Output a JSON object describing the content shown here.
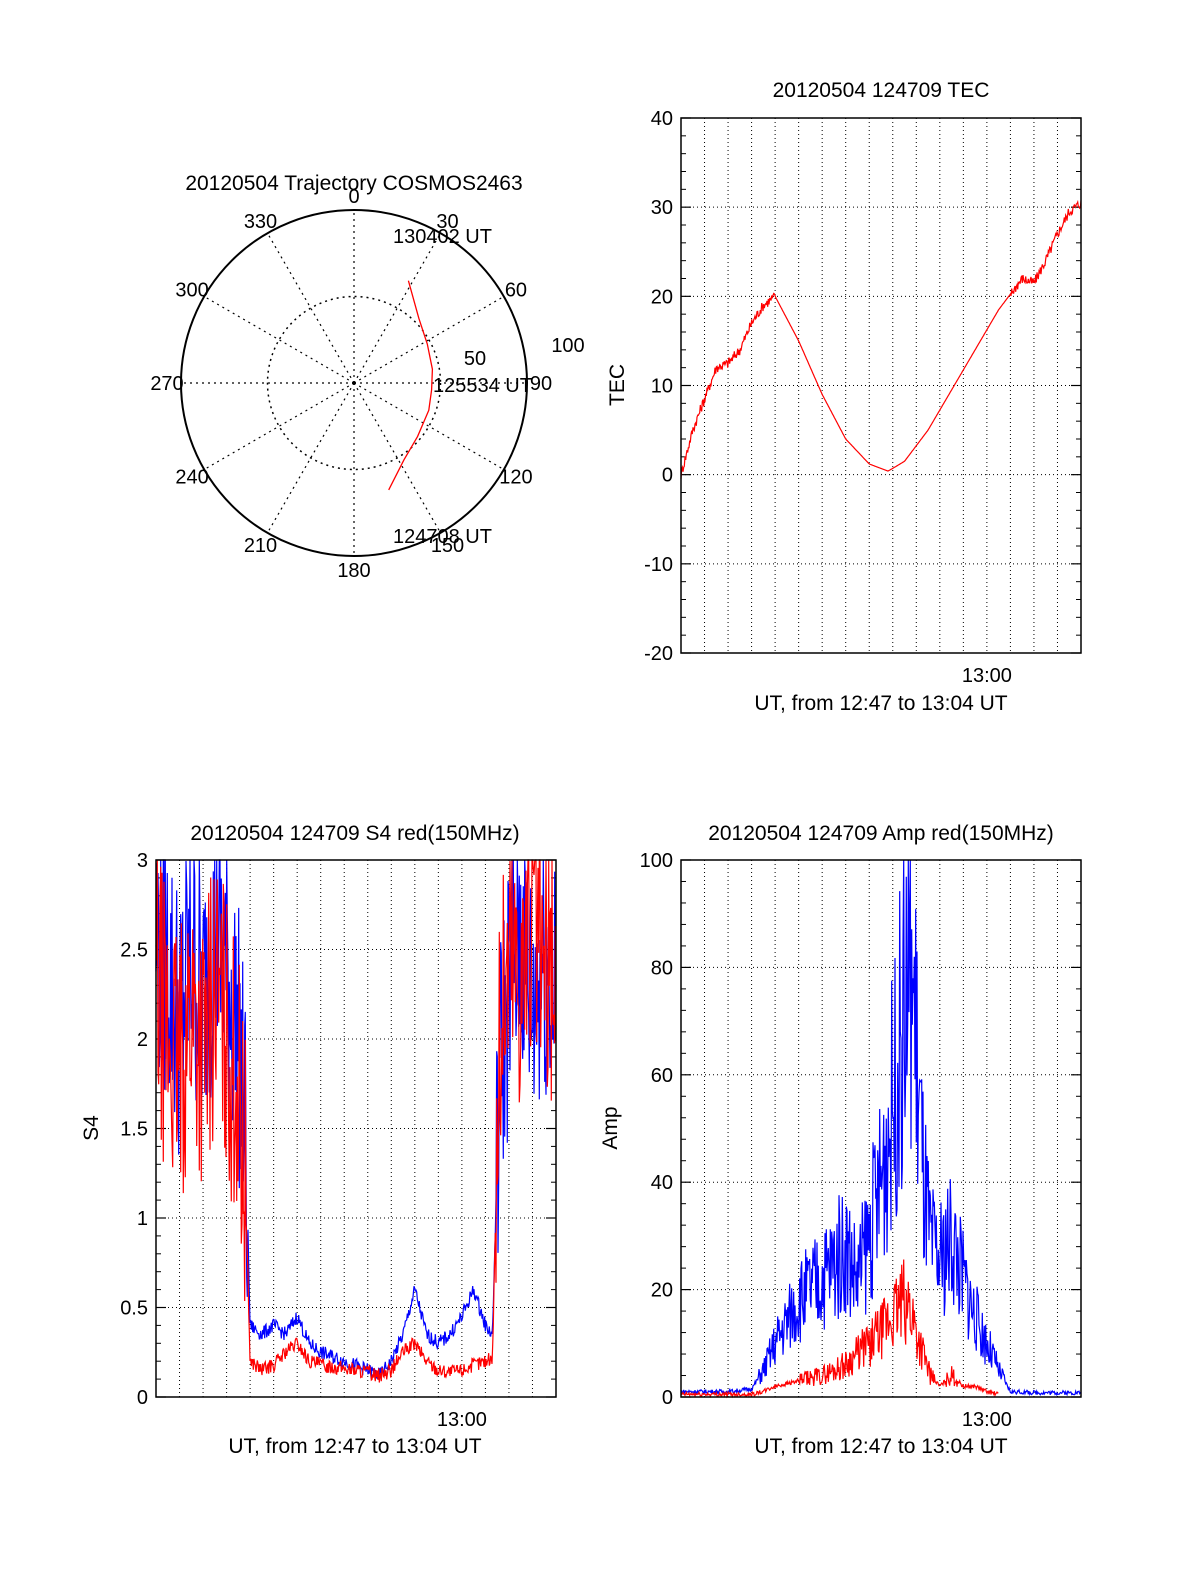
{
  "chart_data": [
    {
      "type": "polar",
      "title": "20120504 Trajectory COSMOS2463",
      "azimuth_labels": [
        "0",
        "30",
        "60",
        "90",
        "120",
        "150",
        "180",
        "210",
        "240",
        "270",
        "300",
        "330"
      ],
      "radial_labels": [
        "50",
        "100"
      ],
      "rlim": [
        0,
        100
      ],
      "grid": true,
      "annotations": [
        "130402 UT",
        "125534 UT",
        "124708 UT"
      ],
      "series": [
        {
          "color": "#ff0000",
          "points": [
            {
              "az": 162,
              "r": 65
            },
            {
              "az": 147,
              "r": 53
            },
            {
              "az": 130,
              "r": 48
            },
            {
              "az": 110,
              "r": 46
            },
            {
              "az": 95,
              "r": 45
            },
            {
              "az": 80,
              "r": 46
            },
            {
              "az": 62,
              "r": 48
            },
            {
              "az": 45,
              "r": 53
            },
            {
              "az": 28,
              "r": 67
            }
          ]
        }
      ]
    },
    {
      "type": "line",
      "title": "20120504 124709 TEC",
      "xlabel": "UT, from 12:47 to 13:04 UT",
      "ylabel": "TEC",
      "x_tick_labels": [
        "13:00"
      ],
      "x_tick_positions_min": [
        13
      ],
      "xlim": [
        0,
        17
      ],
      "ylim": [
        -20,
        40
      ],
      "y_ticks": [
        -20,
        -10,
        0,
        10,
        20,
        30,
        40
      ],
      "grid": true,
      "series": [
        {
          "color": "#ff0000",
          "x": [
            0,
            0.5,
            1.0,
            1.5,
            2.0,
            2.5,
            3.0,
            3.5,
            4.0,
            5.0,
            6.0,
            7.0,
            8.0,
            8.8,
            9.5,
            10.5,
            11.5,
            12.5,
            13.5,
            14.5,
            15.0,
            15.5,
            16.0,
            16.5,
            17.0
          ],
          "y": [
            0,
            5,
            8.5,
            12,
            12.5,
            14,
            17,
            19,
            20,
            15,
            9,
            4,
            1.2,
            0.4,
            1.5,
            5,
            9.5,
            14,
            18.5,
            22,
            21.5,
            24,
            27,
            29.5,
            30.5
          ]
        }
      ]
    },
    {
      "type": "line",
      "title": "20120504 124709 S4 red(150MHz)",
      "xlabel": "UT, from 12:47 to 13:04 UT",
      "ylabel": "S4",
      "x_tick_labels": [
        "13:00"
      ],
      "x_tick_positions_min": [
        13
      ],
      "xlim": [
        0,
        17
      ],
      "ylim": [
        0,
        3
      ],
      "y_ticks": [
        0,
        0.5,
        1,
        1.5,
        2,
        2.5,
        3
      ],
      "y_tick_labels": [
        "0",
        "0.5",
        "1",
        "1.5",
        "2",
        "2.5",
        "3"
      ],
      "grid": true,
      "series": [
        {
          "color": "#0000ff",
          "x": [
            0,
            0.5,
            1.0,
            1.5,
            2.0,
            2.5,
            3.0,
            3.5,
            3.8,
            4.0,
            4.5,
            5.0,
            5.5,
            6.0,
            6.5,
            7.0,
            8.0,
            9.0,
            9.5,
            10.0,
            10.5,
            11.0,
            11.5,
            12.0,
            12.5,
            13.0,
            13.5,
            14.0,
            14.3,
            14.6,
            15.0,
            15.5,
            16.0,
            16.5,
            17.0
          ],
          "y": [
            2.6,
            2.4,
            2.1,
            2.5,
            2.2,
            2.6,
            2.4,
            2.0,
            1.5,
            0.4,
            0.35,
            0.4,
            0.35,
            0.45,
            0.3,
            0.25,
            0.2,
            0.15,
            0.12,
            0.2,
            0.35,
            0.6,
            0.35,
            0.3,
            0.35,
            0.45,
            0.6,
            0.4,
            0.35,
            1.8,
            2.3,
            2.6,
            2.2,
            2.5,
            2.2
          ]
        },
        {
          "color": "#ff0000",
          "x": [
            0,
            0.5,
            1.0,
            1.5,
            2.0,
            2.5,
            3.0,
            3.5,
            3.8,
            4.0,
            4.5,
            5.0,
            5.5,
            6.0,
            6.5,
            7.0,
            8.0,
            9.0,
            9.5,
            10.0,
            10.5,
            11.0,
            11.5,
            12.0,
            12.5,
            13.0,
            13.5,
            14.0,
            14.3,
            14.6,
            15.0,
            15.5,
            16.0,
            16.5,
            17.0
          ],
          "y": [
            2.3,
            2.0,
            1.8,
            2.2,
            1.9,
            2.3,
            2.0,
            1.7,
            1.2,
            0.2,
            0.15,
            0.18,
            0.25,
            0.3,
            0.2,
            0.18,
            0.16,
            0.14,
            0.12,
            0.15,
            0.25,
            0.3,
            0.2,
            0.15,
            0.14,
            0.15,
            0.18,
            0.2,
            0.22,
            2.0,
            2.5,
            2.4,
            2.7,
            2.3,
            2.4
          ]
        }
      ]
    },
    {
      "type": "line",
      "title": "20120504 124709 Amp red(150MHz)",
      "xlabel": "UT, from 12:47 to 13:04 UT",
      "ylabel": "Amp",
      "x_tick_labels": [
        "13:00"
      ],
      "x_tick_positions_min": [
        13
      ],
      "xlim": [
        0,
        17
      ],
      "ylim": [
        0,
        100
      ],
      "y_ticks": [
        0,
        20,
        40,
        60,
        80,
        100
      ],
      "grid": true,
      "series": [
        {
          "color": "#0000ff",
          "x": [
            0,
            1.0,
            2.0,
            3.0,
            3.5,
            4.0,
            4.5,
            5.0,
            5.5,
            6.0,
            6.5,
            7.0,
            7.5,
            8.0,
            8.5,
            9.0,
            9.5,
            9.8,
            10.0,
            10.3,
            10.6,
            11.0,
            11.5,
            12.0,
            12.5,
            13.0,
            13.5,
            14.0,
            15.0,
            16.0,
            17.0
          ],
          "y": [
            1,
            1,
            1,
            1.5,
            5,
            10,
            14,
            18,
            20,
            22,
            25,
            28,
            22,
            30,
            40,
            55,
            72,
            80,
            65,
            40,
            28,
            25,
            30,
            22,
            15,
            10,
            5,
            1,
            0.8,
            0.8,
            0.8
          ]
        },
        {
          "color": "#ff0000",
          "x": [
            0,
            3.0,
            3.5,
            4.0,
            5.0,
            6.0,
            7.0,
            7.5,
            8.0,
            8.5,
            9.0,
            9.5,
            9.8,
            10.0,
            10.3,
            10.6,
            11.0,
            11.5,
            12.0,
            12.5,
            13.0,
            13.5
          ],
          "y": [
            0.5,
            0.5,
            1,
            2,
            3,
            4,
            6,
            8,
            10,
            12,
            15,
            18,
            16,
            12,
            8,
            4,
            2,
            4,
            2,
            2,
            1,
            0.5
          ]
        }
      ]
    }
  ]
}
